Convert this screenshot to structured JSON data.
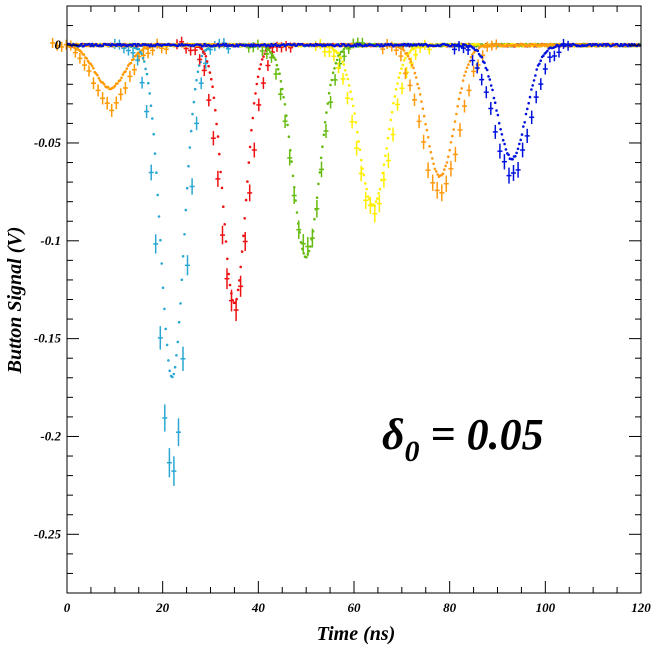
{
  "chart_data": {
    "type": "scatter",
    "title": "",
    "xlabel": "Time (ns)",
    "ylabel": "Button Signal (V)",
    "xlim": [
      0,
      120
    ],
    "ylim": [
      -0.28,
      0.02
    ],
    "x_ticks": [
      0,
      20,
      40,
      60,
      80,
      100,
      120
    ],
    "x_tick_labels": [
      "0",
      "20",
      "40",
      "60",
      "80",
      "100",
      "120"
    ],
    "y_ticks": [
      0,
      -0.05,
      -0.1,
      -0.15,
      -0.2,
      -0.25
    ],
    "y_tick_labels": [
      "0",
      "-0.05",
      "-0.1",
      "-0.15",
      "-0.2",
      "-0.25"
    ],
    "grid": false,
    "legend": "none",
    "annotation": {
      "symbol": "δ",
      "subscript": "0",
      "text": " = 0.05"
    },
    "series": [
      {
        "color": "#ff9900",
        "center": 9,
        "sim_depth": -0.022,
        "sim_width": 3.2,
        "meas_depth": -0.032,
        "meas_width": 3.5
      },
      {
        "color": "#2aa7d3",
        "center": 22,
        "sim_depth": -0.17,
        "sim_width": 2.4,
        "meas_depth": -0.22,
        "meas_width": 2.8
      },
      {
        "color": "#ee1111",
        "center": 35,
        "sim_depth": -0.132,
        "sim_width": 2.4,
        "meas_depth": -0.135,
        "meas_width": 3.0
      },
      {
        "color": "#66bb11",
        "center": 50,
        "sim_depth": -0.108,
        "sim_width": 2.8,
        "meas_depth": -0.105,
        "meas_width": 3.2
      },
      {
        "color": "#ffee00",
        "center": 64,
        "sim_depth": -0.082,
        "sim_width": 3.0,
        "meas_depth": -0.085,
        "meas_width": 3.6
      },
      {
        "color": "#ff9911",
        "center": 78,
        "sim_depth": -0.067,
        "sim_width": 3.0,
        "meas_depth": -0.077,
        "meas_width": 3.8
      },
      {
        "color": "#0011dd",
        "center": 93,
        "sim_depth": -0.058,
        "sim_width": 3.0,
        "meas_depth": -0.066,
        "meas_width": 3.8
      }
    ]
  }
}
